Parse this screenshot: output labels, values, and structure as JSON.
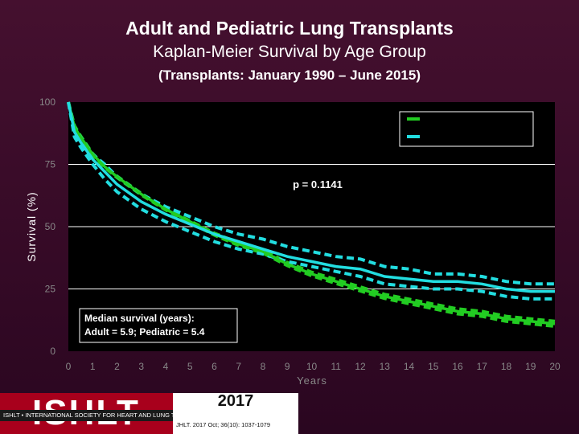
{
  "header": {
    "title": "Adult and Pediatric Lung Transplants",
    "subtitle": "Kaplan-Meier Survival by Age Group",
    "date_range": "(Transplants: January 1990 – June 2015)"
  },
  "chart_data": {
    "type": "line",
    "xlabel": "Years",
    "ylabel": "Survival (%)",
    "xlim": [
      0,
      20
    ],
    "ylim": [
      0,
      100
    ],
    "x_ticks": [
      0,
      1,
      2,
      3,
      4,
      5,
      6,
      7,
      8,
      9,
      10,
      11,
      12,
      13,
      14,
      15,
      16,
      17,
      18,
      19,
      20
    ],
    "y_ticks": [
      0,
      25,
      50,
      75,
      100
    ],
    "grid": "horizontal",
    "legend_position": "top-right",
    "annotations": {
      "p_value": "p = 0.1141",
      "median_line1": "Median survival (years):",
      "median_line2": "Adult = 5.9; Pediatric = 5.4"
    },
    "colors": {
      "adult": "#22cc22",
      "pediatric": "#22dde0"
    },
    "x": [
      0,
      0.25,
      0.5,
      1,
      1.5,
      2,
      3,
      4,
      5,
      6,
      7,
      8,
      9,
      10,
      11,
      12,
      13,
      14,
      15,
      16,
      17,
      18,
      19,
      20
    ],
    "series": [
      {
        "key": "adult",
        "values": [
          100,
          90,
          86,
          79,
          74,
          70,
          63,
          57,
          52,
          47,
          43,
          40,
          35,
          31,
          28,
          25,
          22,
          20,
          18,
          16,
          15,
          13,
          12,
          11
        ],
        "lower": [
          100,
          89.5,
          85.5,
          78.7,
          73.7,
          69.7,
          62.7,
          56.7,
          51.7,
          46.6,
          42.5,
          39.4,
          34.4,
          30.3,
          27.2,
          24.2,
          21.2,
          19.1,
          17.1,
          15.0,
          14.0,
          12.0,
          11.0,
          10.0
        ],
        "upper": [
          100,
          90.5,
          86.5,
          79.3,
          74.3,
          70.3,
          63.3,
          57.3,
          52.3,
          47.4,
          43.5,
          40.6,
          35.6,
          31.7,
          28.8,
          25.8,
          22.8,
          20.9,
          18.9,
          17.0,
          16.0,
          14.0,
          13.0,
          12.0
        ]
      },
      {
        "key": "pediatric",
        "values": [
          100,
          88,
          84,
          77,
          72,
          67,
          60,
          55,
          51,
          47,
          44,
          41,
          38,
          36,
          34,
          33,
          30,
          29,
          28,
          28,
          27,
          25,
          24,
          24
        ],
        "lower": [
          100,
          86,
          82,
          75,
          69,
          64,
          57,
          52,
          48,
          44,
          41,
          39,
          36,
          34,
          32,
          30,
          27,
          26,
          25,
          25,
          24,
          22,
          21,
          21
        ],
        "upper": [
          100,
          90,
          86,
          79,
          75,
          70,
          63,
          58,
          54,
          50,
          47,
          45,
          42,
          40,
          38,
          37,
          34,
          33,
          31,
          31,
          30,
          28,
          27,
          27
        ]
      }
    ]
  },
  "footer": {
    "logo_text": "ISHLT",
    "org_name": "ISHLT • INTERNATIONAL SOCIETY FOR HEART AND LUNG TRANSPLANTATION",
    "year": "2017",
    "citation": "JHLT. 2017 Oct; 36(10): 1037-1079"
  }
}
